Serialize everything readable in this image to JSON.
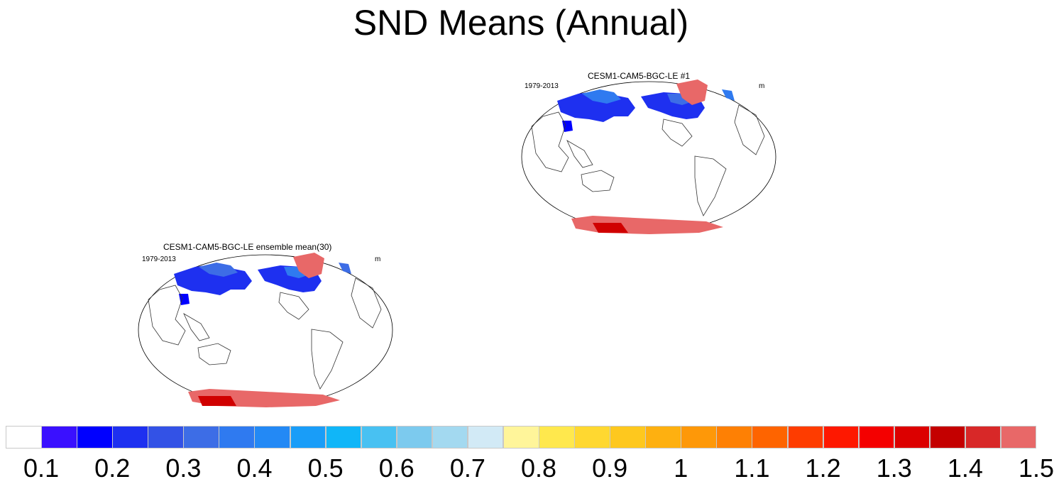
{
  "figure": {
    "title": "SND Means (Annual)"
  },
  "panels": [
    {
      "id": "panel-member1",
      "title": "CESM1-CAM5-BGC-LE #1",
      "left_label": "1979-2013",
      "right_label": "m"
    },
    {
      "id": "panel-ensemble",
      "title": "CESM1-CAM5-BGC-LE ensemble mean(30)",
      "left_label": "1979-2013",
      "right_label": "m"
    }
  ],
  "colorbar": {
    "colors": [
      "#ffffff",
      "#3a10ff",
      "#0000ff",
      "#1e30f0",
      "#3352e6",
      "#3d6de6",
      "#2f7af0",
      "#2389f5",
      "#199df8",
      "#10b6f8",
      "#48c1f2",
      "#7ccaee",
      "#a3d9f0",
      "#d2eaf6",
      "#fff59a",
      "#ffe84d",
      "#ffd830",
      "#fec81e",
      "#feb010",
      "#fe9808",
      "#fe8004",
      "#fe6400",
      "#fe3c00",
      "#fe1800",
      "#f40000",
      "#dc0000",
      "#c40000",
      "#d82828",
      "#e86868"
    ],
    "labels": [
      "0.1",
      "0.2",
      "0.3",
      "0.4",
      "0.5",
      "0.6",
      "0.7",
      "0.8",
      "0.9",
      "1",
      "1.1",
      "1.2",
      "1.3",
      "1.4",
      "1.5"
    ]
  }
}
